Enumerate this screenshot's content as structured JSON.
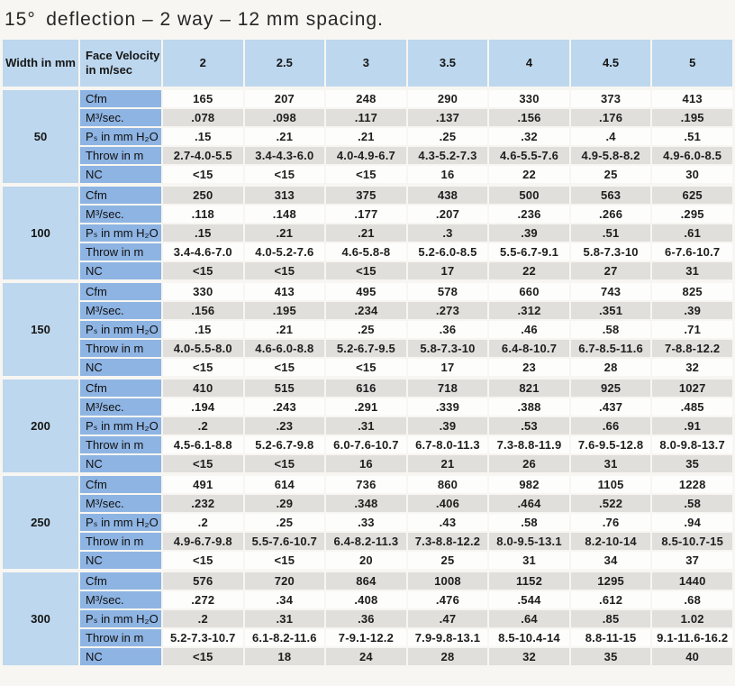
{
  "title": "15° deflection – 2 way – 12 mm spacing.",
  "table": {
    "header": {
      "width_label": "Width in mm",
      "velocity_label": "Face Velocity in m/sec",
      "velocities": [
        "2",
        "2.5",
        "3",
        "3.5",
        "4",
        "4.5",
        "5"
      ]
    },
    "row_labels": [
      "Cfm",
      "M³/sec.",
      "Pₛ in mm H₂O",
      "Throw in m",
      "NC"
    ],
    "blocks": [
      {
        "width": "50",
        "rows": [
          {
            "label": "Cfm",
            "values": [
              "165",
              "207",
              "248",
              "290",
              "330",
              "373",
              "413"
            ]
          },
          {
            "label": "M³/sec.",
            "values": [
              ".078",
              ".098",
              ".117",
              ".137",
              ".156",
              ".176",
              ".195"
            ]
          },
          {
            "label": "Pₛ in mm H₂O",
            "values": [
              ".15",
              ".21",
              ".21",
              ".25",
              ".32",
              ".4",
              ".51"
            ]
          },
          {
            "label": "Throw in m",
            "values": [
              "2.7-4.0-5.5",
              "3.4-4.3-6.0",
              "4.0-4.9-6.7",
              "4.3-5.2-7.3",
              "4.6-5.5-7.6",
              "4.9-5.8-8.2",
              "4.9-6.0-8.5"
            ]
          },
          {
            "label": "NC",
            "values": [
              "<15",
              "<15",
              "<15",
              "16",
              "22",
              "25",
              "30"
            ]
          }
        ]
      },
      {
        "width": "100",
        "rows": [
          {
            "label": "Cfm",
            "values": [
              "250",
              "313",
              "375",
              "438",
              "500",
              "563",
              "625"
            ]
          },
          {
            "label": "M³/sec.",
            "values": [
              ".118",
              ".148",
              ".177",
              ".207",
              ".236",
              ".266",
              ".295"
            ]
          },
          {
            "label": "Pₛ in mm H₂O",
            "values": [
              ".15",
              ".21",
              ".21",
              ".3",
              ".39",
              ".51",
              ".61"
            ]
          },
          {
            "label": "Throw in m",
            "values": [
              "3.4-4.6-7.0",
              "4.0-5.2-7.6",
              "4.6-5.8-8",
              "5.2-6.0-8.5",
              "5.5-6.7-9.1",
              "5.8-7.3-10",
              "6-7.6-10.7"
            ]
          },
          {
            "label": "NC",
            "values": [
              "<15",
              "<15",
              "<15",
              "17",
              "22",
              "27",
              "31"
            ]
          }
        ]
      },
      {
        "width": "150",
        "rows": [
          {
            "label": "Cfm",
            "values": [
              "330",
              "413",
              "495",
              "578",
              "660",
              "743",
              "825"
            ]
          },
          {
            "label": "M³/sec.",
            "values": [
              ".156",
              ".195",
              ".234",
              ".273",
              ".312",
              ".351",
              ".39"
            ]
          },
          {
            "label": "Pₛ in mm H₂O",
            "values": [
              ".15",
              ".21",
              ".25",
              ".36",
              ".46",
              ".58",
              ".71"
            ]
          },
          {
            "label": "Throw in m",
            "values": [
              "4.0-5.5-8.0",
              "4.6-6.0-8.8",
              "5.2-6.7-9.5",
              "5.8-7.3-10",
              "6.4-8-10.7",
              "6.7-8.5-11.6",
              "7-8.8-12.2"
            ]
          },
          {
            "label": "NC",
            "values": [
              "<15",
              "<15",
              "<15",
              "17",
              "23",
              "28",
              "32"
            ]
          }
        ]
      },
      {
        "width": "200",
        "rows": [
          {
            "label": "Cfm",
            "values": [
              "410",
              "515",
              "616",
              "718",
              "821",
              "925",
              "1027"
            ]
          },
          {
            "label": "M³/sec.",
            "values": [
              ".194",
              ".243",
              ".291",
              ".339",
              ".388",
              ".437",
              ".485"
            ]
          },
          {
            "label": "Pₛ in mm H₂O",
            "values": [
              ".2",
              ".23",
              ".31",
              ".39",
              ".53",
              ".66",
              ".91"
            ]
          },
          {
            "label": "Throw in m",
            "values": [
              "4.5-6.1-8.8",
              "5.2-6.7-9.8",
              "6.0-7.6-10.7",
              "6.7-8.0-11.3",
              "7.3-8.8-11.9",
              "7.6-9.5-12.8",
              "8.0-9.8-13.7"
            ]
          },
          {
            "label": "NC",
            "values": [
              "<15",
              "<15",
              "16",
              "21",
              "26",
              "31",
              "35"
            ]
          }
        ]
      },
      {
        "width": "250",
        "rows": [
          {
            "label": "Cfm",
            "values": [
              "491",
              "614",
              "736",
              "860",
              "982",
              "1105",
              "1228"
            ]
          },
          {
            "label": "M³/sec.",
            "values": [
              ".232",
              ".29",
              ".348",
              ".406",
              ".464",
              ".522",
              ".58"
            ]
          },
          {
            "label": "Pₛ in mm H₂O",
            "values": [
              ".2",
              ".25",
              ".33",
              ".43",
              ".58",
              ".76",
              ".94"
            ]
          },
          {
            "label": "Throw in m",
            "values": [
              "4.9-6.7-9.8",
              "5.5-7.6-10.7",
              "6.4-8.2-11.3",
              "7.3-8.8-12.2",
              "8.0-9.5-13.1",
              "8.2-10-14",
              "8.5-10.7-15"
            ]
          },
          {
            "label": "NC",
            "values": [
              "<15",
              "<15",
              "20",
              "25",
              "31",
              "34",
              "37"
            ]
          }
        ]
      },
      {
        "width": "300",
        "rows": [
          {
            "label": "Cfm",
            "values": [
              "576",
              "720",
              "864",
              "1008",
              "1152",
              "1295",
              "1440"
            ]
          },
          {
            "label": "M³/sec.",
            "values": [
              ".272",
              ".34",
              ".408",
              ".476",
              ".544",
              ".612",
              ".68"
            ]
          },
          {
            "label": "Pₛ in mm H₂O",
            "values": [
              ".2",
              ".31",
              ".36",
              ".47",
              ".64",
              ".85",
              "1.02"
            ]
          },
          {
            "label": "Throw in m",
            "values": [
              "5.2-7.3-10.7",
              "6.1-8.2-11.6",
              "7-9.1-12.2",
              "7.9-9.8-13.1",
              "8.5-10.4-14",
              "8.8-11-15",
              "9.1-11.6-16.2"
            ]
          },
          {
            "label": "NC",
            "values": [
              "<15",
              "18",
              "24",
              "28",
              "32",
              "35",
              "40"
            ]
          }
        ]
      }
    ],
    "colors": {
      "header_blue": "#bdd7ee",
      "label_blue": "#8eb4e3",
      "stripe_gray": "#e0dfdc",
      "stripe_white": "#fdfdfc",
      "page_background": "#f8f6f2"
    }
  }
}
